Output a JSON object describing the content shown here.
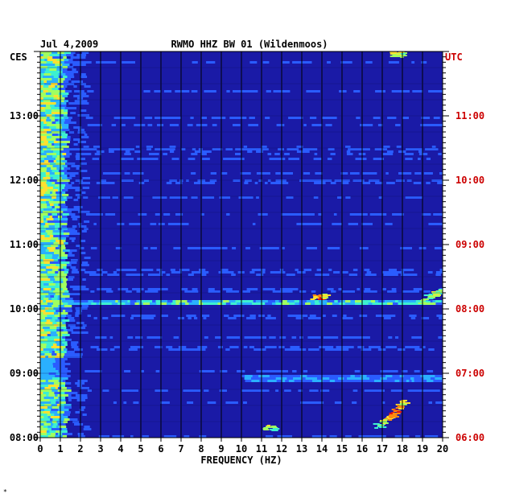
{
  "chart_data": {
    "type": "heatmap",
    "title_date": "Jul 4,2009",
    "title": "RWMO HHZ BW 01 (Wildenmoos)",
    "left_axis_label": "CES",
    "right_axis_label": "UTC",
    "xlabel": "FREQUENCY (HZ)",
    "xlim": [
      0,
      20
    ],
    "x_ticks": [
      "0",
      "1",
      "2",
      "3",
      "4",
      "5",
      "6",
      "7",
      "8",
      "9",
      "10",
      "11",
      "12",
      "13",
      "14",
      "15",
      "16",
      "17",
      "18",
      "19",
      "20"
    ],
    "y_ticks_left": [
      "13:00",
      "12:00",
      "11:00",
      "10:00",
      "09:00",
      "08:00"
    ],
    "y_ticks_right": [
      "11:00",
      "10:00",
      "09:00",
      "08:00",
      "07:00",
      "06:00"
    ],
    "colors": {
      "background": "#1a1aa6",
      "grid": "#000000",
      "utc_text": "#cc0000",
      "text": "#000000"
    },
    "colormap": [
      "#1a1aa6",
      "#2a5cff",
      "#2ab0ff",
      "#3df0d0",
      "#a0ff60",
      "#ffe030",
      "#ff8a10",
      "#e01010"
    ]
  },
  "footnote_mark": "*"
}
